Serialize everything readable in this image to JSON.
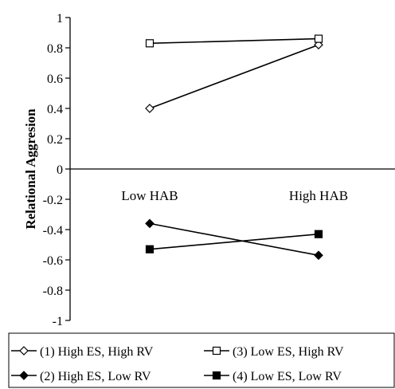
{
  "chart_data": {
    "type": "line",
    "xlabel": "",
    "ylabel": "Relational Aggresion",
    "ylim": [
      -1,
      1
    ],
    "yticks": [
      "1",
      "0.8",
      "0.6",
      "0.4",
      "0.2",
      "0",
      "-0.2",
      "-0.4",
      "-0.6",
      "-0.8",
      "-1"
    ],
    "categories": [
      "Low HAB",
      "High HAB"
    ],
    "grid": false,
    "legend_position": "bottom",
    "series": [
      {
        "name": "(1) High ES, High RV",
        "marker": "open-diamond",
        "values": [
          0.4,
          0.82
        ]
      },
      {
        "name": "(2) High ES, Low RV",
        "marker": "filled-diamond",
        "values": [
          -0.36,
          -0.57
        ]
      },
      {
        "name": "(3) Low ES, High RV",
        "marker": "open-square",
        "values": [
          0.83,
          0.86
        ]
      },
      {
        "name": "(4) Low ES, Low RV",
        "marker": "filled-square",
        "values": [
          -0.53,
          -0.43
        ]
      }
    ]
  }
}
